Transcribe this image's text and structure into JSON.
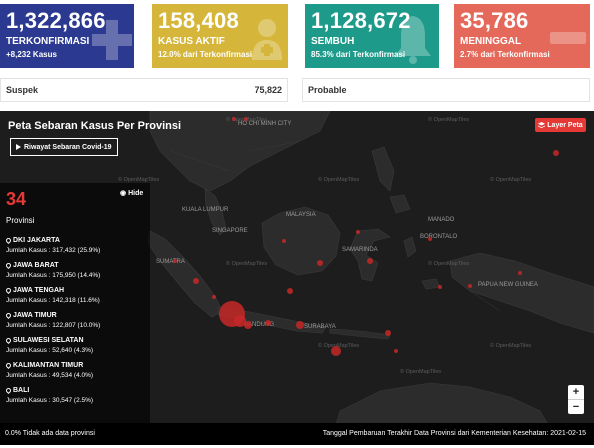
{
  "cards": {
    "confirmed": {
      "value": "1,322,866",
      "label": "TERKONFIRMASI",
      "sub": "+8,232 Kasus",
      "color": "#2b3990",
      "icon": "plus-icon"
    },
    "active": {
      "value": "158,408",
      "label": "KASUS AKTIF",
      "sub": "12.0% dari Terkonfirmasi",
      "color": "#d5b63a",
      "icon": "hospital-icon"
    },
    "recovered": {
      "value": "1,128,672",
      "label": "SEMBUH",
      "sub": "85.3% dari Terkonfirmasi",
      "color": "#1e9a8a",
      "icon": "bell-icon"
    },
    "deaths": {
      "value": "35,786",
      "label": "MENINGGAL",
      "sub": "2.7% dari Terkonfirmasi",
      "color": "#e5695a",
      "icon": "minus-icon"
    }
  },
  "stats": {
    "suspek": {
      "label": "Suspek",
      "value": "75,822"
    },
    "probable": {
      "label": "Probable",
      "value": ""
    }
  },
  "map": {
    "title": "Peta Sebaran Kasus Per Provinsi",
    "history_button": "Riwayat Sebaran Covid-19",
    "layer_button": "Layer Peta",
    "hide_button": "Hide",
    "province_count": "34",
    "province_count_label": "Provinsi",
    "provinces": [
      {
        "name": "DKI JAKARTA",
        "cases": "Jumlah Kasus : 317,432 (25.9%)"
      },
      {
        "name": "JAWA BARAT",
        "cases": "Jumlah Kasus : 175,950 (14.4%)"
      },
      {
        "name": "JAWA TENGAH",
        "cases": "Jumlah Kasus : 142,318 (11.6%)"
      },
      {
        "name": "JAWA TIMUR",
        "cases": "Jumlah Kasus : 122,807 (10.0%)"
      },
      {
        "name": "SULAWESI SELATAN",
        "cases": "Jumlah Kasus : 52,640 (4.3%)"
      },
      {
        "name": "KALIMANTAN TIMUR",
        "cases": "Jumlah Kasus : 49,534 (4.0%)"
      },
      {
        "name": "BALI",
        "cases": "Jumlah Kasus : 30,547 (2.5%)"
      }
    ],
    "cities": [
      "HO CHI MINH CITY",
      "KUALA LUMPUR",
      "SINGAPORE",
      "MALAYSIA",
      "BANDUNG",
      "SURABAYA",
      "PAPUA NEW GUINEA",
      "BORONTALO",
      "MANADO",
      "SUMATRA",
      "SAMARINDA"
    ],
    "attribution": "© OpenMapTiles",
    "zoom_in": "+",
    "zoom_out": "−",
    "footer_left": "0.0% Tidak ada data provinsi",
    "footer_right": "Tanggal Pembaruan Terakhir Data Provinsi dari Kementerian Kesehatan: 2021-02-15",
    "marker_color": "#c62828"
  }
}
